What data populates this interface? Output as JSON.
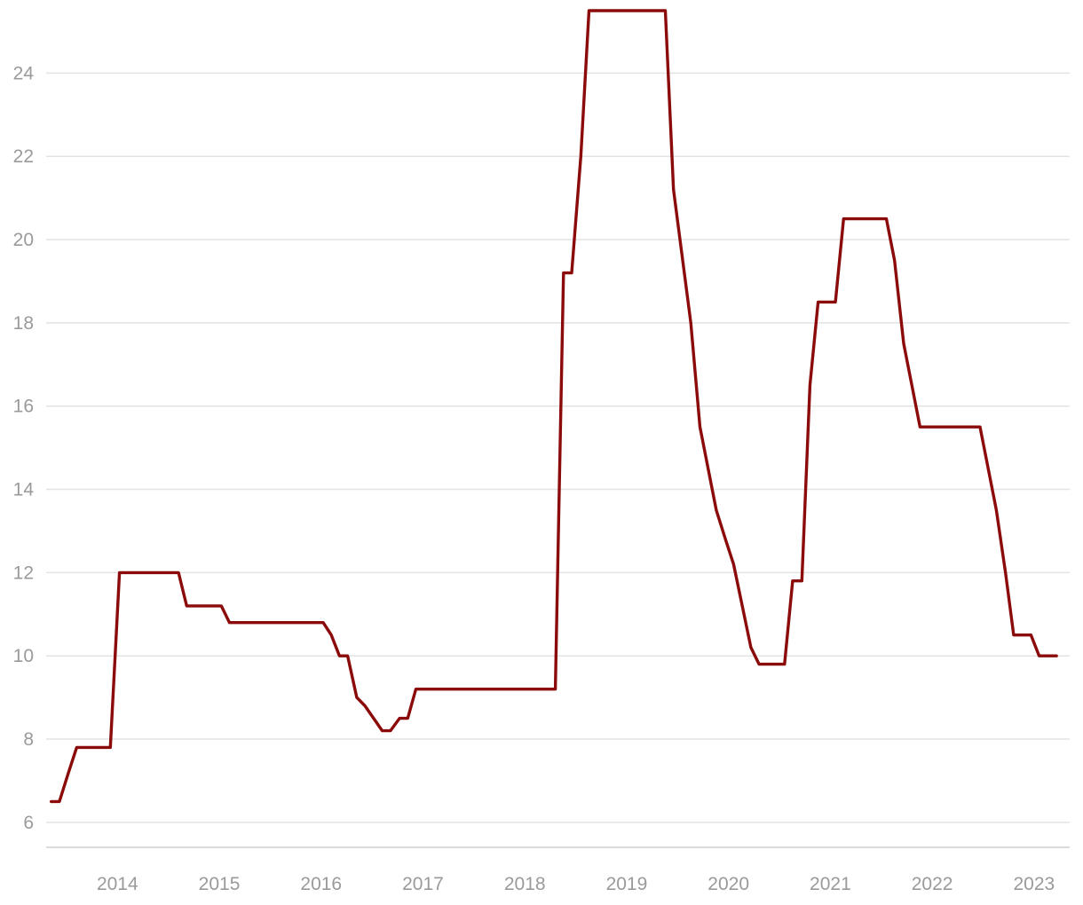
{
  "chart_data": {
    "type": "line",
    "title": "",
    "xlabel": "",
    "ylabel": "",
    "xlim": [
      2013.3,
      2023.35
    ],
    "ylim": [
      5.4,
      25.5
    ],
    "y_ticks": [
      6,
      8,
      10,
      12,
      14,
      16,
      18,
      20,
      22,
      24
    ],
    "x_ticks": [
      2014,
      2015,
      2016,
      2017,
      2018,
      2019,
      2020,
      2021,
      2022,
      2023
    ],
    "grid": "horizontal",
    "legend": "none",
    "series": [
      {
        "color": "#8b0a0a",
        "points": [
          [
            2013.35,
            6.5
          ],
          [
            2013.43,
            6.5
          ],
          [
            2013.52,
            7.2
          ],
          [
            2013.6,
            7.8
          ],
          [
            2013.93,
            7.8
          ],
          [
            2014.02,
            12.0
          ],
          [
            2014.6,
            12.0
          ],
          [
            2014.68,
            11.2
          ],
          [
            2015.02,
            11.2
          ],
          [
            2015.1,
            10.8
          ],
          [
            2016.02,
            10.8
          ],
          [
            2016.1,
            10.5
          ],
          [
            2016.18,
            10.0
          ],
          [
            2016.26,
            10.0
          ],
          [
            2016.35,
            9.0
          ],
          [
            2016.43,
            8.8
          ],
          [
            2016.6,
            8.2
          ],
          [
            2016.68,
            8.2
          ],
          [
            2016.77,
            8.5
          ],
          [
            2016.85,
            8.5
          ],
          [
            2016.93,
            9.2
          ],
          [
            2018.3,
            9.2
          ],
          [
            2018.38,
            19.2
          ],
          [
            2018.46,
            19.2
          ],
          [
            2018.55,
            22.0
          ],
          [
            2018.63,
            25.5
          ],
          [
            2019.38,
            25.5
          ],
          [
            2019.46,
            21.2
          ],
          [
            2019.63,
            18.0
          ],
          [
            2019.72,
            15.5
          ],
          [
            2019.88,
            13.5
          ],
          [
            2019.97,
            12.8
          ],
          [
            2020.05,
            12.2
          ],
          [
            2020.22,
            10.2
          ],
          [
            2020.3,
            9.8
          ],
          [
            2020.55,
            9.8
          ],
          [
            2020.63,
            11.8
          ],
          [
            2020.72,
            11.8
          ],
          [
            2020.8,
            16.5
          ],
          [
            2020.88,
            18.5
          ],
          [
            2021.05,
            18.5
          ],
          [
            2021.13,
            20.5
          ],
          [
            2021.55,
            20.5
          ],
          [
            2021.63,
            19.5
          ],
          [
            2021.72,
            17.5
          ],
          [
            2021.8,
            16.5
          ],
          [
            2021.88,
            15.5
          ],
          [
            2022.47,
            15.5
          ],
          [
            2022.55,
            14.5
          ],
          [
            2022.63,
            13.5
          ],
          [
            2022.72,
            12.0
          ],
          [
            2022.8,
            10.5
          ],
          [
            2022.97,
            10.5
          ],
          [
            2023.05,
            10.0
          ],
          [
            2023.22,
            10.0
          ]
        ]
      }
    ]
  }
}
